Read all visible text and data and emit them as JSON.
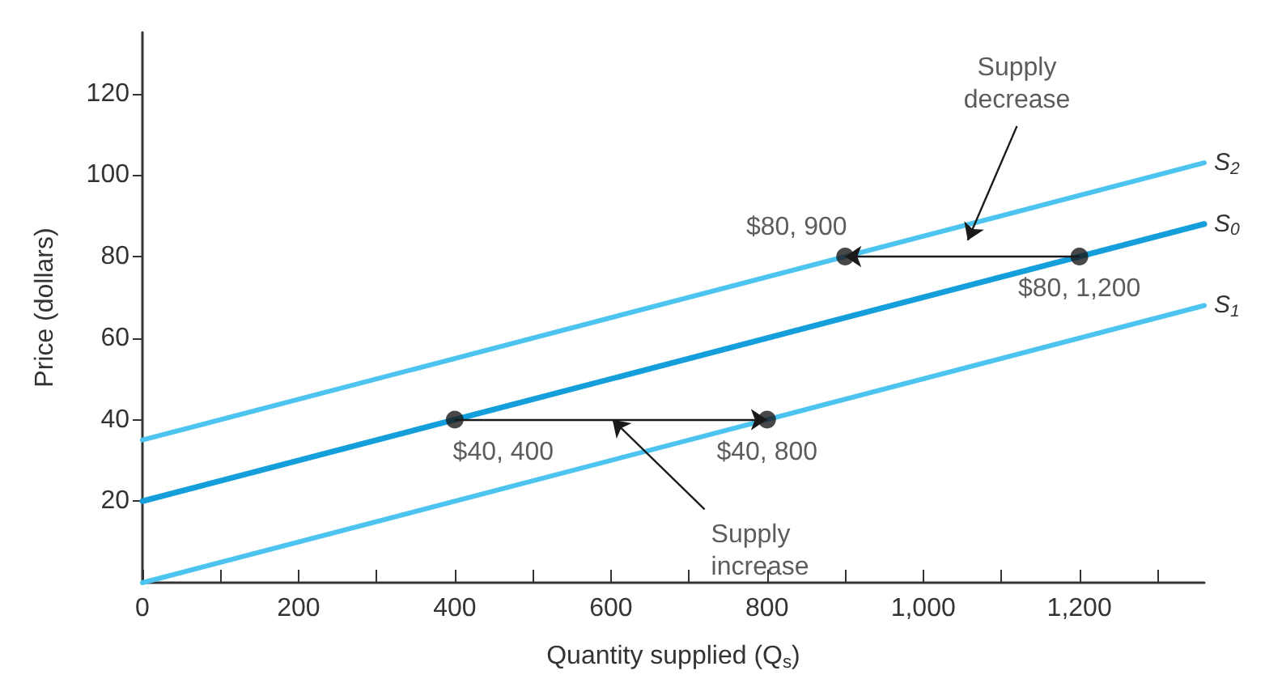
{
  "chart_data": {
    "type": "line",
    "xlabel": "Quantity supplied (Q$_{s}$)",
    "ylabel": "Price (dollars)",
    "xlim": [
      0,
      1360
    ],
    "ylim": [
      0,
      135
    ],
    "xticks": [
      0,
      {
        "value": 100,
        "label": null
      },
      200,
      {
        "value": 300,
        "label": null
      },
      400,
      {
        "value": 500,
        "label": null
      },
      600,
      {
        "value": 700,
        "label": null
      },
      800,
      {
        "value": 900,
        "label": null
      },
      {
        "value": 1000,
        "label": "1,000"
      },
      {
        "value": 1100,
        "label": null
      },
      {
        "value": 1200,
        "label": "1,200"
      },
      {
        "value": 1300,
        "label": null
      }
    ],
    "yticks": [
      20,
      40,
      60,
      80,
      100,
      120
    ],
    "grid": false,
    "legend": false,
    "marker": "none",
    "line_style": "solid",
    "x": [
      0,
      1360
    ],
    "series": [
      {
        "name": "S$_{2}$",
        "color": "#4cc4ef",
        "values": [
          35,
          103
        ]
      },
      {
        "name": "S$_{0}$",
        "color": "#149fdb",
        "values": [
          20,
          88
        ]
      },
      {
        "name": "S$_{1}$",
        "color": "#4cc4ef",
        "values": [
          0,
          68
        ]
      },
      {
        "type": "scatter",
        "marker": "circle",
        "color": "#1a1a1a",
        "x": [
          1200,
          900,
          400,
          800
        ],
        "values": [
          80,
          80,
          40,
          40
        ]
      }
    ],
    "annotations": [
      {
        "text": "$80, 1,200",
        "x": 1200,
        "y": 80
      },
      {
        "text": "$80, 900",
        "x": 900,
        "y": 80
      },
      {
        "text": "$40, 400",
        "x": 400,
        "y": 40
      },
      {
        "text": "$40, 800",
        "x": 800,
        "y": 40
      },
      "Supply decrease",
      "Supply increase"
    ]
  }
}
